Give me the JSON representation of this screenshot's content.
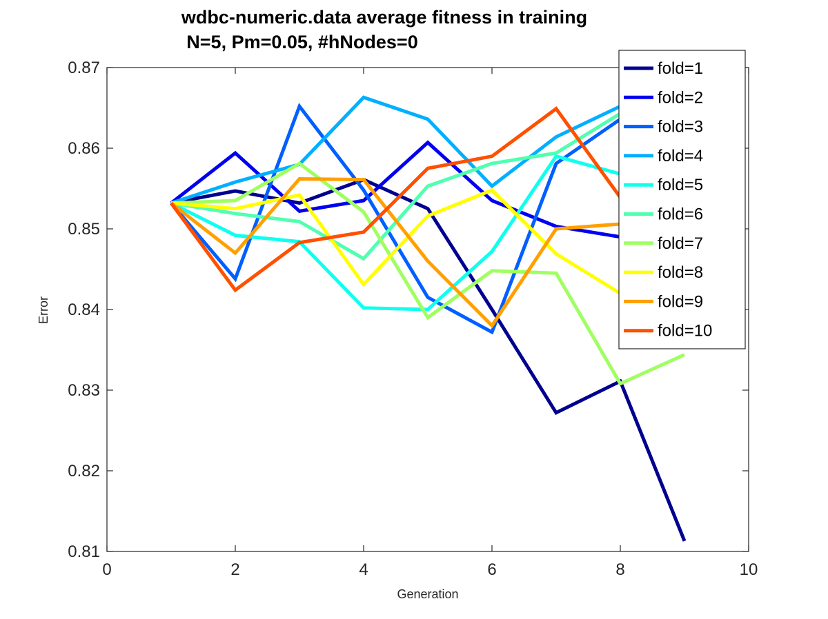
{
  "chart_data": {
    "type": "line",
    "title": "wdbc-numeric.data average fitness in training",
    "subtitle": "N=5, Pm=0.05, #hNodes=0",
    "xlabel": "Generation",
    "ylabel": "Error",
    "xlim": [
      0,
      10
    ],
    "ylim": [
      0.81,
      0.87
    ],
    "xticks": [
      0,
      2,
      4,
      6,
      8,
      10
    ],
    "xtick_labels": [
      "0",
      "2",
      "4",
      "6",
      "8",
      "10"
    ],
    "yticks": [
      0.81,
      0.82,
      0.83,
      0.84,
      0.85,
      0.86,
      0.87
    ],
    "ytick_labels": [
      "0.81",
      "0.82",
      "0.83",
      "0.84",
      "0.85",
      "0.86",
      "0.87"
    ],
    "grid": false,
    "legend_position": "top-right",
    "x": [
      1,
      2,
      3,
      4,
      5,
      6,
      7,
      8,
      9
    ],
    "series": [
      {
        "name": "fold=1",
        "color": "#00008f",
        "values": [
          0.8532,
          0.8547,
          0.8532,
          0.8561,
          0.8525,
          0.84,
          0.8272,
          0.8311,
          0.8113
        ]
      },
      {
        "name": "fold=2",
        "color": "#0000ef",
        "values": [
          0.8532,
          0.8594,
          0.8522,
          0.8535,
          0.8607,
          0.8535,
          0.8503,
          0.849,
          null
        ]
      },
      {
        "name": "fold=3",
        "color": "#005fff",
        "values": [
          0.8532,
          0.8438,
          0.8652,
          0.8548,
          0.8415,
          0.8372,
          0.8581,
          0.8636,
          null
        ]
      },
      {
        "name": "fold=4",
        "color": "#00afff",
        "values": [
          0.8532,
          0.8558,
          0.858,
          0.8663,
          0.8636,
          0.8553,
          0.8614,
          0.8652,
          null
        ]
      },
      {
        "name": "fold=5",
        "color": "#0fffef",
        "values": [
          0.8532,
          0.8492,
          0.8484,
          0.8402,
          0.84,
          0.8472,
          0.859,
          0.8568,
          null
        ]
      },
      {
        "name": "fold=6",
        "color": "#50ffaf",
        "values": [
          0.8532,
          0.8519,
          0.8509,
          0.8463,
          0.8553,
          0.8581,
          0.8594,
          0.8643,
          null
        ]
      },
      {
        "name": "fold=7",
        "color": "#9fff60",
        "values": [
          0.8532,
          0.8535,
          0.8581,
          0.8521,
          0.839,
          0.8448,
          0.8445,
          0.8308,
          0.8344
        ]
      },
      {
        "name": "fold=8",
        "color": "#ffff00",
        "values": [
          0.8532,
          0.8525,
          0.8542,
          0.8431,
          0.8516,
          0.8548,
          0.8469,
          0.842,
          null
        ]
      },
      {
        "name": "fold=9",
        "color": "#ffa000",
        "values": [
          0.8532,
          0.847,
          0.8562,
          0.8561,
          0.846,
          0.838,
          0.85,
          0.8506,
          null
        ]
      },
      {
        "name": "fold=10",
        "color": "#ff5000",
        "values": [
          0.8532,
          0.8424,
          0.8483,
          0.8496,
          0.8575,
          0.859,
          0.8649,
          0.8539,
          null
        ]
      }
    ]
  }
}
